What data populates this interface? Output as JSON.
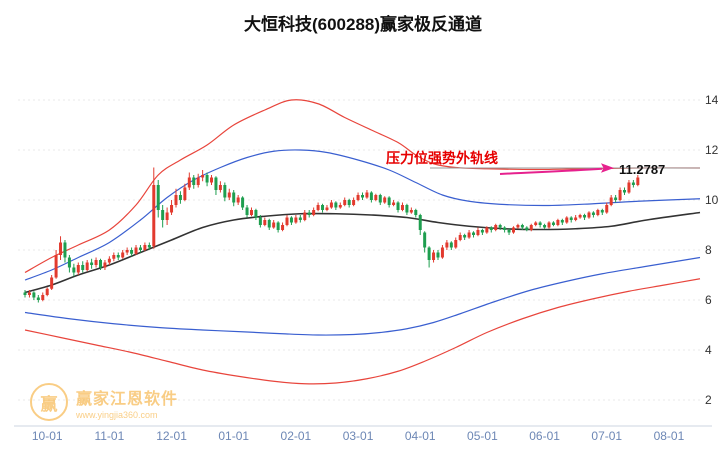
{
  "title": "大恒科技(600288)赢家极反通道",
  "watermark": {
    "logo_char": "赢",
    "brand": "赢家江恩软件",
    "url": "www.yingjia360.com",
    "color": "#f5a623"
  },
  "annotation": {
    "pressure_text": "压力位强势外轨线",
    "price_label": "11.2787",
    "text_color": "#e60000",
    "arrow_color": "#e6218e"
  },
  "chart_data": {
    "type": "candlestick-with-channel",
    "title": "大恒科技(600288)赢家极反通道",
    "x_ticks": [
      "10-01",
      "11-01",
      "12-01",
      "01-01",
      "02-01",
      "03-01",
      "04-01",
      "05-01",
      "06-01",
      "07-01",
      "08-01"
    ],
    "tick_indices": [
      5,
      19,
      33,
      47,
      61,
      75,
      89,
      103,
      117,
      131,
      145
    ],
    "y_ticks": [
      2,
      4,
      6,
      8,
      10,
      12,
      14
    ],
    "ylim": [
      1.8,
      14.8
    ],
    "grid": "dotted-horizontal",
    "pressure_level": 11.2787,
    "colors": {
      "up": "#e23a2e",
      "down": "#1e9e4f",
      "outer": "#e8453c",
      "inner": "#3a5fd0",
      "mid": "#333333",
      "pressure_line": "#999999"
    },
    "candles": [
      [
        6.3,
        6.2,
        6.1,
        6.4
      ],
      [
        6.2,
        6.3,
        6.1,
        6.4
      ],
      [
        6.3,
        6.1,
        6.0,
        6.35
      ],
      [
        6.1,
        6.0,
        5.9,
        6.2
      ],
      [
        6.0,
        6.2,
        5.95,
        6.3
      ],
      [
        6.2,
        6.45,
        6.15,
        6.5
      ],
      [
        6.45,
        6.9,
        6.4,
        7.0
      ],
      [
        6.9,
        7.8,
        6.85,
        8.0
      ],
      [
        7.8,
        8.3,
        7.6,
        8.55
      ],
      [
        8.3,
        7.7,
        7.5,
        8.4
      ],
      [
        7.7,
        7.3,
        7.1,
        7.8
      ],
      [
        7.3,
        7.1,
        6.95,
        7.45
      ],
      [
        7.1,
        7.4,
        7.0,
        7.5
      ],
      [
        7.4,
        7.2,
        7.1,
        7.55
      ],
      [
        7.2,
        7.5,
        7.15,
        7.6
      ],
      [
        7.5,
        7.4,
        7.25,
        7.65
      ],
      [
        7.4,
        7.6,
        7.3,
        7.7
      ],
      [
        7.6,
        7.3,
        7.2,
        7.65
      ],
      [
        7.3,
        7.5,
        7.2,
        7.6
      ],
      [
        7.5,
        7.65,
        7.4,
        7.75
      ],
      [
        7.65,
        7.8,
        7.55,
        7.9
      ],
      [
        7.8,
        7.7,
        7.6,
        7.9
      ],
      [
        7.7,
        7.9,
        7.65,
        8.0
      ],
      [
        7.9,
        8.0,
        7.8,
        8.1
      ],
      [
        8.0,
        7.85,
        7.75,
        8.1
      ],
      [
        7.85,
        8.1,
        7.8,
        8.2
      ],
      [
        8.1,
        8.0,
        7.9,
        8.2
      ],
      [
        8.0,
        8.2,
        7.95,
        8.3
      ],
      [
        8.2,
        8.1,
        8.0,
        8.3
      ],
      [
        8.15,
        10.6,
        8.05,
        11.3
      ],
      [
        10.6,
        9.6,
        9.3,
        10.8
      ],
      [
        9.6,
        9.2,
        8.9,
        9.8
      ],
      [
        9.2,
        9.5,
        9.0,
        9.7
      ],
      [
        9.5,
        9.8,
        9.4,
        10.0
      ],
      [
        9.8,
        10.2,
        9.7,
        10.45
      ],
      [
        10.2,
        10.0,
        9.85,
        10.35
      ],
      [
        10.0,
        10.5,
        9.95,
        10.65
      ],
      [
        10.5,
        10.9,
        10.4,
        11.1
      ],
      [
        10.9,
        10.6,
        10.45,
        11.0
      ],
      [
        10.6,
        10.9,
        10.5,
        11.05
      ],
      [
        10.9,
        11.0,
        10.75,
        11.2
      ],
      [
        11.0,
        10.7,
        10.55,
        11.1
      ],
      [
        10.7,
        10.9,
        10.6,
        11.0
      ],
      [
        10.9,
        10.4,
        10.2,
        10.95
      ],
      [
        10.4,
        10.6,
        10.3,
        10.75
      ],
      [
        10.6,
        10.1,
        9.95,
        10.7
      ],
      [
        10.1,
        10.3,
        10.0,
        10.45
      ],
      [
        10.3,
        9.9,
        9.75,
        10.4
      ],
      [
        9.9,
        10.1,
        9.8,
        10.2
      ],
      [
        10.1,
        9.7,
        9.6,
        10.15
      ],
      [
        9.7,
        9.4,
        9.3,
        9.8
      ],
      [
        9.4,
        9.6,
        9.35,
        9.7
      ],
      [
        9.6,
        9.3,
        9.2,
        9.65
      ],
      [
        9.3,
        9.0,
        8.9,
        9.4
      ],
      [
        9.0,
        9.2,
        8.95,
        9.3
      ],
      [
        9.2,
        8.9,
        8.8,
        9.25
      ],
      [
        8.9,
        9.1,
        8.85,
        9.2
      ],
      [
        9.1,
        8.8,
        8.7,
        9.15
      ],
      [
        8.8,
        9.0,
        8.75,
        9.1
      ],
      [
        9.0,
        9.3,
        8.95,
        9.4
      ],
      [
        9.3,
        9.1,
        9.0,
        9.35
      ],
      [
        9.1,
        9.3,
        9.05,
        9.4
      ],
      [
        9.3,
        9.2,
        9.1,
        9.4
      ],
      [
        9.2,
        9.5,
        9.15,
        9.6
      ],
      [
        9.5,
        9.4,
        9.3,
        9.6
      ],
      [
        9.4,
        9.6,
        9.35,
        9.7
      ],
      [
        9.6,
        9.8,
        9.55,
        9.9
      ],
      [
        9.8,
        9.6,
        9.5,
        9.85
      ],
      [
        9.6,
        9.7,
        9.55,
        9.8
      ],
      [
        9.7,
        9.9,
        9.65,
        10.0
      ],
      [
        9.9,
        9.7,
        9.6,
        9.95
      ],
      [
        9.7,
        9.8,
        9.65,
        9.9
      ],
      [
        9.8,
        10.0,
        9.75,
        10.1
      ],
      [
        10.0,
        9.8,
        9.7,
        10.05
      ],
      [
        9.8,
        10.0,
        9.75,
        10.1
      ],
      [
        10.0,
        10.2,
        9.95,
        10.3
      ],
      [
        10.2,
        10.1,
        10.0,
        10.3
      ],
      [
        10.1,
        10.3,
        10.05,
        10.4
      ],
      [
        10.3,
        10.0,
        9.9,
        10.35
      ],
      [
        10.0,
        10.2,
        9.95,
        10.25
      ],
      [
        10.2,
        9.9,
        9.8,
        10.25
      ],
      [
        9.9,
        10.1,
        9.85,
        10.15
      ],
      [
        10.1,
        9.8,
        9.7,
        10.15
      ],
      [
        9.8,
        9.9,
        9.75,
        10.0
      ],
      [
        9.9,
        9.6,
        9.5,
        9.95
      ],
      [
        9.6,
        9.8,
        9.55,
        9.9
      ],
      [
        9.8,
        9.5,
        9.4,
        9.85
      ],
      [
        9.5,
        9.6,
        9.45,
        9.7
      ],
      [
        9.6,
        9.4,
        9.3,
        9.65
      ],
      [
        9.4,
        8.8,
        8.6,
        9.45
      ],
      [
        8.7,
        8.1,
        7.9,
        8.75
      ],
      [
        8.1,
        7.6,
        7.3,
        8.15
      ],
      [
        7.6,
        7.9,
        7.5,
        8.0
      ],
      [
        7.9,
        7.7,
        7.6,
        8.0
      ],
      [
        7.7,
        8.1,
        7.65,
        8.2
      ],
      [
        8.1,
        8.3,
        8.0,
        8.4
      ],
      [
        8.3,
        8.1,
        8.0,
        8.35
      ],
      [
        8.1,
        8.4,
        8.05,
        8.5
      ],
      [
        8.4,
        8.6,
        8.35,
        8.7
      ],
      [
        8.6,
        8.5,
        8.4,
        8.65
      ],
      [
        8.5,
        8.7,
        8.45,
        8.8
      ],
      [
        8.7,
        8.6,
        8.5,
        8.75
      ],
      [
        8.6,
        8.8,
        8.55,
        8.9
      ],
      [
        8.8,
        8.7,
        8.6,
        8.85
      ],
      [
        8.7,
        8.9,
        8.65,
        8.95
      ],
      [
        8.9,
        8.8,
        8.7,
        8.95
      ],
      [
        8.8,
        9.0,
        8.75,
        9.05
      ],
      [
        9.0,
        8.9,
        8.8,
        9.05
      ],
      [
        8.9,
        8.8,
        8.7,
        8.95
      ],
      [
        8.8,
        8.7,
        8.6,
        8.85
      ],
      [
        8.7,
        8.9,
        8.65,
        8.95
      ],
      [
        8.9,
        9.0,
        8.85,
        9.05
      ],
      [
        9.0,
        8.9,
        8.8,
        9.05
      ],
      [
        8.9,
        8.8,
        8.75,
        8.95
      ],
      [
        8.8,
        9.0,
        8.75,
        9.05
      ],
      [
        9.0,
        9.1,
        8.95,
        9.15
      ],
      [
        9.1,
        9.0,
        8.9,
        9.15
      ],
      [
        9.0,
        8.9,
        8.85,
        9.05
      ],
      [
        8.9,
        9.1,
        8.85,
        9.15
      ],
      [
        9.1,
        9.0,
        8.95,
        9.15
      ],
      [
        9.0,
        9.2,
        8.95,
        9.25
      ],
      [
        9.2,
        9.1,
        9.0,
        9.25
      ],
      [
        9.1,
        9.3,
        9.05,
        9.35
      ],
      [
        9.3,
        9.2,
        9.1,
        9.35
      ],
      [
        9.2,
        9.3,
        9.15,
        9.4
      ],
      [
        9.3,
        9.4,
        9.25,
        9.45
      ],
      [
        9.4,
        9.3,
        9.2,
        9.45
      ],
      [
        9.3,
        9.5,
        9.25,
        9.55
      ],
      [
        9.5,
        9.4,
        9.3,
        9.55
      ],
      [
        9.4,
        9.6,
        9.35,
        9.65
      ],
      [
        9.6,
        9.5,
        9.4,
        9.65
      ],
      [
        9.5,
        9.8,
        9.45,
        9.9
      ],
      [
        9.8,
        10.1,
        9.75,
        10.2
      ],
      [
        10.1,
        10.0,
        9.9,
        10.2
      ],
      [
        10.0,
        10.4,
        9.95,
        10.5
      ],
      [
        10.4,
        10.3,
        10.2,
        10.5
      ],
      [
        10.3,
        10.7,
        10.25,
        10.8
      ],
      [
        10.7,
        10.6,
        10.5,
        10.8
      ],
      [
        10.6,
        10.9,
        10.55,
        11.0
      ]
    ],
    "bands": [
      {
        "name": "outer-upper",
        "color": "#e8453c",
        "width": 1.2,
        "points": [
          [
            0,
            7.1
          ],
          [
            6,
            7.7
          ],
          [
            12,
            8.2
          ],
          [
            19,
            8.8
          ],
          [
            25,
            9.8
          ],
          [
            30,
            11.0
          ],
          [
            35,
            11.6
          ],
          [
            41,
            12.2
          ],
          [
            47,
            13.0
          ],
          [
            54,
            13.6
          ],
          [
            60,
            14.0
          ],
          [
            66,
            13.85
          ],
          [
            72,
            13.3
          ],
          [
            78,
            12.8
          ],
          [
            84,
            12.3
          ],
          [
            88,
            11.8
          ],
          [
            92,
            11.45
          ],
          [
            97,
            11.3
          ],
          [
            104,
            11.25
          ],
          [
            115,
            11.22
          ],
          [
            126,
            11.25
          ],
          [
            138,
            11.28
          ],
          [
            152,
            11.28
          ]
        ]
      },
      {
        "name": "inner-upper",
        "color": "#3a5fd0",
        "width": 1.2,
        "points": [
          [
            0,
            6.8
          ],
          [
            6,
            7.2
          ],
          [
            12,
            7.7
          ],
          [
            19,
            8.3
          ],
          [
            26,
            9.2
          ],
          [
            32,
            10.1
          ],
          [
            38,
            10.8
          ],
          [
            44,
            11.3
          ],
          [
            50,
            11.7
          ],
          [
            56,
            11.95
          ],
          [
            62,
            12.0
          ],
          [
            68,
            11.9
          ],
          [
            75,
            11.6
          ],
          [
            82,
            11.2
          ],
          [
            88,
            10.7
          ],
          [
            94,
            10.2
          ],
          [
            100,
            9.95
          ],
          [
            108,
            9.82
          ],
          [
            118,
            9.78
          ],
          [
            128,
            9.85
          ],
          [
            138,
            9.95
          ],
          [
            152,
            10.05
          ]
        ]
      },
      {
        "name": "middle",
        "color": "#333333",
        "width": 1.6,
        "points": [
          [
            0,
            6.3
          ],
          [
            6,
            6.6
          ],
          [
            12,
            7.0
          ],
          [
            19,
            7.4
          ],
          [
            26,
            7.9
          ],
          [
            33,
            8.4
          ],
          [
            40,
            8.9
          ],
          [
            47,
            9.2
          ],
          [
            54,
            9.35
          ],
          [
            62,
            9.45
          ],
          [
            70,
            9.45
          ],
          [
            78,
            9.4
          ],
          [
            86,
            9.3
          ],
          [
            93,
            9.1
          ],
          [
            100,
            8.95
          ],
          [
            108,
            8.85
          ],
          [
            116,
            8.82
          ],
          [
            124,
            8.85
          ],
          [
            132,
            8.95
          ],
          [
            140,
            9.2
          ],
          [
            152,
            9.5
          ]
        ]
      },
      {
        "name": "inner-lower",
        "color": "#3a5fd0",
        "width": 1.2,
        "points": [
          [
            0,
            5.5
          ],
          [
            10,
            5.25
          ],
          [
            20,
            5.05
          ],
          [
            30,
            4.9
          ],
          [
            40,
            4.8
          ],
          [
            50,
            4.72
          ],
          [
            58,
            4.65
          ],
          [
            66,
            4.6
          ],
          [
            74,
            4.62
          ],
          [
            80,
            4.7
          ],
          [
            86,
            4.85
          ],
          [
            92,
            5.1
          ],
          [
            98,
            5.45
          ],
          [
            106,
            5.95
          ],
          [
            114,
            6.4
          ],
          [
            122,
            6.75
          ],
          [
            130,
            7.05
          ],
          [
            140,
            7.35
          ],
          [
            152,
            7.7
          ]
        ]
      },
      {
        "name": "outer-lower",
        "color": "#e8453c",
        "width": 1.2,
        "points": [
          [
            0,
            4.8
          ],
          [
            8,
            4.5
          ],
          [
            16,
            4.2
          ],
          [
            24,
            3.9
          ],
          [
            32,
            3.55
          ],
          [
            40,
            3.2
          ],
          [
            48,
            2.95
          ],
          [
            56,
            2.75
          ],
          [
            63,
            2.65
          ],
          [
            70,
            2.68
          ],
          [
            77,
            2.85
          ],
          [
            84,
            3.15
          ],
          [
            90,
            3.55
          ],
          [
            97,
            4.1
          ],
          [
            104,
            4.7
          ],
          [
            112,
            5.25
          ],
          [
            120,
            5.7
          ],
          [
            128,
            6.05
          ],
          [
            136,
            6.35
          ],
          [
            144,
            6.6
          ],
          [
            152,
            6.85
          ]
        ]
      }
    ]
  }
}
